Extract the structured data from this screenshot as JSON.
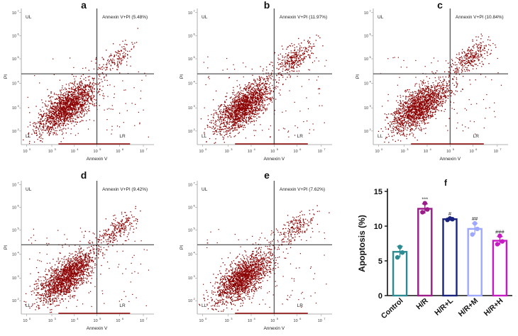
{
  "figure": {
    "panels": [
      {
        "letter": "a",
        "label": "Annexin V+PI (5.48%)",
        "q": {
          "UL": "UL",
          "LL": "LL",
          "LR": "LR"
        },
        "xlabel": "Annexin V",
        "ylabel": "PI",
        "ur_percent": 5.48
      },
      {
        "letter": "b",
        "label": "Annexin V+PI (11.97%)",
        "q": {
          "UL": "UL",
          "LL": "LL",
          "LR": "LR"
        },
        "xlabel": "Annexin V",
        "ylabel": "PI",
        "ur_percent": 11.97
      },
      {
        "letter": "c",
        "label": "Annexin V+PI (10.84%)",
        "q": {
          "UL": "UL",
          "LL": "LL",
          "LR": "LR"
        },
        "xlabel": "Annexin V",
        "ylabel": "PI",
        "ur_percent": 10.84
      },
      {
        "letter": "d",
        "label": "Annexin V+PI (9.42%)",
        "q": {
          "UL": "UL",
          "LL": "LL",
          "LR": "LR"
        },
        "xlabel": "Annexin V",
        "ylabel": "PI",
        "ur_percent": 9.42
      },
      {
        "letter": "e",
        "label": "Annexin V+PI (7.62%)",
        "q": {
          "UL": "UL",
          "LL": "LL",
          "LR": "LR"
        },
        "xlabel": "Annexin V",
        "ylabel": "PI",
        "ur_percent": 7.62
      }
    ],
    "x_ticks": [
      "10",
      "10",
      "10",
      "10",
      "10",
      "10"
    ],
    "x_tick_exps": [
      "0",
      "3",
      "4",
      "5",
      "6",
      "7"
    ],
    "y_ticks": [
      "10",
      "10",
      "10",
      "10",
      "10",
      "10"
    ],
    "y_tick_exps": [
      "7",
      "6",
      "5",
      "4",
      "3",
      "2"
    ],
    "dot_color": "#8b0000",
    "gate_color": "#2b2b2b"
  },
  "chart_data": {
    "type": "bar",
    "panel_letter": "f",
    "title": "",
    "xlabel": "",
    "ylabel": "Apoptosis (%)",
    "ylim": [
      0,
      15
    ],
    "yticks": [
      0,
      5,
      10,
      15
    ],
    "ytick_labels": [
      "0",
      "5",
      "10",
      "15"
    ],
    "categories": [
      "Control",
      "H/R",
      "H/R+L",
      "H/R+M",
      "H/R+H"
    ],
    "values": [
      6.3,
      12.5,
      11.0,
      9.6,
      7.9
    ],
    "points": [
      [
        5.5,
        6.2,
        7.0
      ],
      [
        12.0,
        12.4,
        13.3
      ],
      [
        10.9,
        11.0,
        11.1
      ],
      [
        8.8,
        9.6,
        10.4
      ],
      [
        7.4,
        7.8,
        8.6
      ]
    ],
    "errors": [
      0.8,
      0.7,
      0.1,
      0.8,
      0.6
    ],
    "annotations": [
      "",
      "***",
      "#",
      "##",
      "###"
    ],
    "colors": [
      "#2a8b93",
      "#9b1d8a",
      "#1a237e",
      "#9fa8ff",
      "#c61ac2"
    ]
  }
}
